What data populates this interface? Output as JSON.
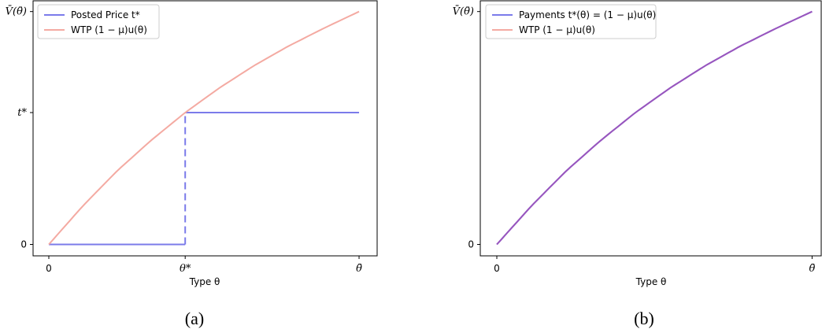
{
  "chart_data": [
    {
      "type": "line",
      "panel_label": "(a)",
      "xlabel": "Type θ",
      "ylabel": "",
      "xlim": [
        0,
        1
      ],
      "ylim": [
        0,
        1
      ],
      "x_ticks": [
        {
          "value": 0,
          "label": "0"
        },
        {
          "value": 0.4,
          "label": "θ*"
        },
        {
          "value": 0.91,
          "label": "θ̄"
        }
      ],
      "y_ticks": [
        {
          "value": 0,
          "label": "0"
        },
        {
          "value": 0.564,
          "label": "t*"
        },
        {
          "value": 0.996,
          "label": "V̄(θ̄)"
        }
      ],
      "legend_position": "top-left",
      "series": [
        {
          "name": "Posted Price t*",
          "color": "#7b7bea",
          "style": "step",
          "threshold_x": 0.4,
          "x": [
            0,
            0.4,
            0.4,
            0.91
          ],
          "y": [
            0,
            0,
            0.564,
            0.564
          ],
          "dashed_segment_index": 1
        },
        {
          "name": "WTP (1 − μ)u(θ)",
          "color": "#f4aaa2",
          "style": "solid",
          "x": [
            0,
            0.1,
            0.2,
            0.3,
            0.4,
            0.5,
            0.6,
            0.7,
            0.8,
            0.91
          ],
          "y": [
            0,
            0.165,
            0.314,
            0.445,
            0.564,
            0.669,
            0.763,
            0.846,
            0.92,
            0.996
          ]
        }
      ]
    },
    {
      "type": "line",
      "panel_label": "(b)",
      "xlabel": "Type θ",
      "ylabel": "",
      "xlim": [
        0,
        1
      ],
      "ylim": [
        0,
        1
      ],
      "x_ticks": [
        {
          "value": 0,
          "label": "0"
        },
        {
          "value": 0.91,
          "label": "θ̄"
        }
      ],
      "y_ticks": [
        {
          "value": 0,
          "label": "0"
        },
        {
          "value": 0.996,
          "label": "V̄(θ̄)"
        }
      ],
      "legend_position": "top-left",
      "series": [
        {
          "name": "Payments t*(θ) = (1 − μ)u(θ)",
          "color": "#7b7bea",
          "style": "solid",
          "x": [
            0,
            0.1,
            0.2,
            0.3,
            0.4,
            0.5,
            0.6,
            0.7,
            0.8,
            0.91
          ],
          "y": [
            0,
            0.165,
            0.314,
            0.445,
            0.564,
            0.669,
            0.763,
            0.846,
            0.92,
            0.996
          ]
        },
        {
          "name": "WTP (1 − μ)u(θ)",
          "color": "#f4aaa2",
          "style": "solid",
          "x": [
            0,
            0.1,
            0.2,
            0.3,
            0.4,
            0.5,
            0.6,
            0.7,
            0.8,
            0.91
          ],
          "y": [
            0,
            0.165,
            0.314,
            0.445,
            0.564,
            0.669,
            0.763,
            0.846,
            0.92,
            0.996
          ]
        }
      ],
      "overlap_color": "#9b50b8"
    }
  ]
}
